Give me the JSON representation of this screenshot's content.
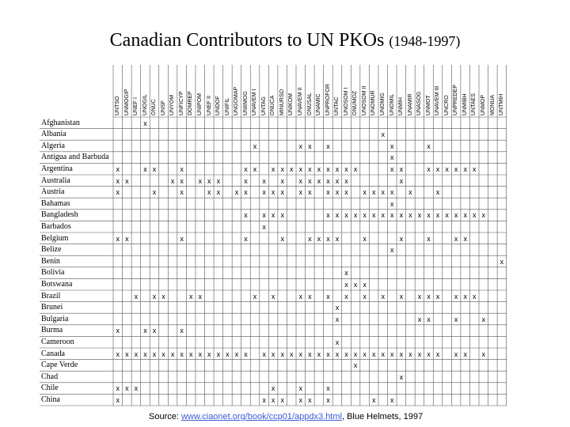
{
  "title": {
    "main": "Canadian Contributors to UN PKOs",
    "years": "(1948-1997)"
  },
  "columns": [
    "UNTSO",
    "UNMOGIP",
    "UNEF I",
    "UNOGIL",
    "ONUC",
    "UNSF",
    "UNYOM",
    "UNFICYP",
    "DOMREP",
    "UNIPOM",
    "UNEF II",
    "UNDOF",
    "UNIFIL",
    "UNGOMAP",
    "UNIIMOG",
    "UNAVEM I",
    "UNTAG",
    "ONUCA",
    "MINURSO",
    "UNIKOM",
    "UNAVEM II",
    "ONUSAL",
    "UNAMIC",
    "UNPROFOR",
    "UNTAC",
    "UNOSOM I",
    "ONUMOZ",
    "UNOSOM II",
    "UNOMUR",
    "UNOMIG",
    "UNOMIL",
    "UNMIH",
    "UNAMIR",
    "UNASOG",
    "UNMOT",
    "UNAVEM III",
    "UNCRO",
    "UNPREDEP",
    "UNMIBH",
    "UNTAES",
    "UNMOP",
    "MONUA",
    "UNTMIH"
  ],
  "rows": [
    {
      "name": "Afghanistan",
      "marks": [
        3
      ]
    },
    {
      "name": "Albania",
      "marks": [
        29
      ]
    },
    {
      "name": "Algeria",
      "marks": [
        15,
        20,
        21,
        23,
        30,
        34
      ]
    },
    {
      "name": "Antigua and Barbuda",
      "marks": [
        30
      ]
    },
    {
      "name": "Argentina",
      "marks": [
        0,
        3,
        4,
        7,
        14,
        15,
        17,
        18,
        19,
        20,
        21,
        22,
        23,
        24,
        25,
        26,
        30,
        31,
        34,
        35,
        36,
        37,
        38,
        39
      ]
    },
    {
      "name": "Australia",
      "marks": [
        0,
        1,
        6,
        7,
        9,
        10,
        11,
        14,
        16,
        18,
        20,
        21,
        22,
        23,
        24,
        25,
        31
      ]
    },
    {
      "name": "Austria",
      "marks": [
        0,
        4,
        7,
        10,
        11,
        13,
        14,
        16,
        17,
        18,
        20,
        21,
        23,
        24,
        25,
        27,
        28,
        29,
        30,
        32,
        35
      ]
    },
    {
      "name": "Bahamas",
      "marks": [
        30
      ]
    },
    {
      "name": "Bangladesh",
      "marks": [
        14,
        16,
        17,
        18,
        23,
        24,
        25,
        26,
        27,
        28,
        29,
        30,
        31,
        32,
        33,
        34,
        35,
        36,
        37,
        38,
        39,
        40
      ]
    },
    {
      "name": "Barbados",
      "marks": [
        16
      ]
    },
    {
      "name": "Belgium",
      "marks": [
        0,
        1,
        7,
        14,
        18,
        21,
        22,
        23,
        24,
        27,
        31,
        34,
        37,
        38
      ]
    },
    {
      "name": "Belize",
      "marks": [
        30
      ]
    },
    {
      "name": "Benin",
      "marks": [
        42
      ]
    },
    {
      "name": "Bolivia",
      "marks": [
        25
      ]
    },
    {
      "name": "Botswana",
      "marks": [
        25,
        26,
        27
      ]
    },
    {
      "name": "Brazil",
      "marks": [
        2,
        4,
        5,
        8,
        9,
        15,
        17,
        20,
        21,
        23,
        25,
        27,
        29,
        31,
        33,
        34,
        35,
        37,
        38,
        39
      ]
    },
    {
      "name": "Brunei",
      "marks": [
        24
      ]
    },
    {
      "name": "Bulgaria",
      "marks": [
        24,
        33,
        34,
        37,
        40
      ]
    },
    {
      "name": "Burma",
      "marks": [
        0,
        3,
        4,
        7
      ]
    },
    {
      "name": "Cameroon",
      "marks": [
        24
      ]
    },
    {
      "name": "Canada",
      "marks": [
        0,
        1,
        2,
        3,
        4,
        5,
        6,
        7,
        8,
        9,
        10,
        11,
        12,
        13,
        14,
        16,
        17,
        18,
        19,
        20,
        21,
        22,
        23,
        24,
        25,
        26,
        27,
        28,
        29,
        30,
        31,
        32,
        33,
        34,
        35,
        37,
        38,
        40
      ]
    },
    {
      "name": "Cape Verde",
      "marks": [
        26
      ]
    },
    {
      "name": "Chad",
      "marks": [
        31
      ]
    },
    {
      "name": "Chile",
      "marks": [
        0,
        1,
        2,
        17,
        20,
        23
      ]
    },
    {
      "name": "China",
      "marks": [
        0,
        16,
        17,
        18,
        20,
        21,
        23,
        28,
        30
      ]
    }
  ],
  "source": {
    "prefix": "Source: ",
    "link": "www.ciaonet.org/book/ccp01/appdx3.html",
    "suffix": ", Blue Helmets, 1997"
  },
  "colors": {
    "grid": "#555555",
    "link": "#3b5bd6"
  }
}
